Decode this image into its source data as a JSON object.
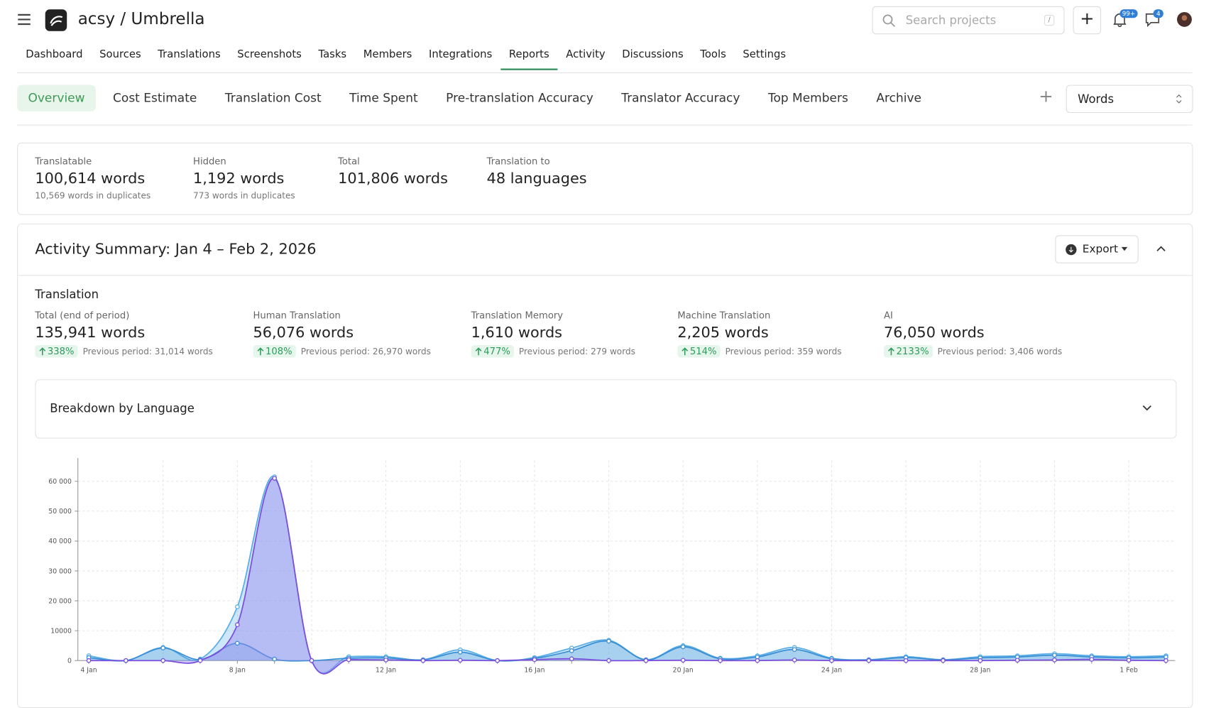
{
  "header": {
    "project_title": "acsy / Umbrella",
    "search_placeholder": "Search projects",
    "search_shortcut": "/",
    "notifications_badge": "99+",
    "messages_badge": "4"
  },
  "nav": {
    "items": [
      "Dashboard",
      "Sources",
      "Translations",
      "Screenshots",
      "Tasks",
      "Members",
      "Integrations",
      "Reports",
      "Activity",
      "Discussions",
      "Tools",
      "Settings"
    ],
    "active": 7
  },
  "report_tabs": {
    "items": [
      "Overview",
      "Cost Estimate",
      "Translation Cost",
      "Time Spent",
      "Pre-translation Accuracy",
      "Translator Accuracy",
      "Top Members",
      "Archive"
    ],
    "active": 0,
    "unit_select": "Words"
  },
  "stats": [
    {
      "label": "Translatable",
      "value": "100,614 words",
      "note": "10,569 words in duplicates"
    },
    {
      "label": "Hidden",
      "value": "1,192 words",
      "note": "773 words in duplicates"
    },
    {
      "label": "Total",
      "value": "101,806 words"
    },
    {
      "label": "Translation to",
      "value": "48 languages"
    }
  ],
  "activity": {
    "title": "Activity Summary: Jan 4 – Feb 2, 2026",
    "export": "Export",
    "section": "Translation",
    "metrics": [
      {
        "label": "Total (end of period)",
        "value": "135,941 words",
        "change": "338%",
        "previous": "Previous period: 31,014 words"
      },
      {
        "label": "Human Translation",
        "value": "56,076 words",
        "change": "108%",
        "previous": "Previous period: 26,970 words"
      },
      {
        "label": "Translation Memory",
        "value": "1,610 words",
        "change": "477%",
        "previous": "Previous period: 279 words"
      },
      {
        "label": "Machine Translation",
        "value": "2,205 words",
        "change": "514%",
        "previous": "Previous period: 359 words"
      },
      {
        "label": "AI",
        "value": "76,050 words",
        "change": "2133%",
        "previous": "Previous period: 3,406 words"
      }
    ],
    "breakdown": "Breakdown by Language"
  },
  "chart_data": {
    "type": "area",
    "categories": [
      "4 Jan",
      null,
      null,
      null,
      "8 Jan",
      null,
      null,
      null,
      "12 Jan",
      null,
      null,
      null,
      "16 Jan",
      null,
      null,
      null,
      "20 Jan",
      null,
      null,
      null,
      "24 Jan",
      null,
      null,
      null,
      "28 Jan",
      null,
      null,
      null,
      "1 Feb",
      null
    ],
    "series": [
      {
        "color": "#5aaee8",
        "values": [
          1600,
          0,
          4400,
          500,
          18000,
          61500,
          0,
          1300,
          1300,
          300,
          3600,
          0,
          1000,
          4200,
          6800,
          300,
          5000,
          800,
          1600,
          4400,
          800,
          300,
          1300,
          300,
          1300,
          1600,
          2300,
          1600,
          1300,
          1600
        ]
      },
      {
        "color": "#3a8fd4",
        "values": [
          1000,
          0,
          4200,
          300,
          5800,
          500,
          0,
          800,
          900,
          200,
          2800,
          0,
          700,
          3300,
          6500,
          200,
          4600,
          600,
          1200,
          3700,
          600,
          200,
          1000,
          200,
          900,
          1200,
          1800,
          1200,
          900,
          1200
        ]
      },
      {
        "color": "#7b4fdc",
        "values": [
          0,
          0,
          0,
          0,
          12000,
          61000,
          0,
          300,
          200,
          0,
          100,
          0,
          300,
          600,
          0,
          0,
          100,
          0,
          0,
          200,
          0,
          0,
          0,
          0,
          0,
          100,
          200,
          400,
          100,
          0
        ]
      }
    ],
    "ylim": [
      0,
      67000
    ],
    "yticks": [
      0,
      10000,
      {
        "value": 20000,
        "label": "20 000"
      },
      {
        "value": 30000,
        "label": "30 000"
      },
      {
        "value": 40000,
        "label": "40 000"
      },
      {
        "value": 50000,
        "label": "50 000"
      },
      {
        "value": 60000,
        "label": "60 000"
      }
    ],
    "grid": true
  }
}
